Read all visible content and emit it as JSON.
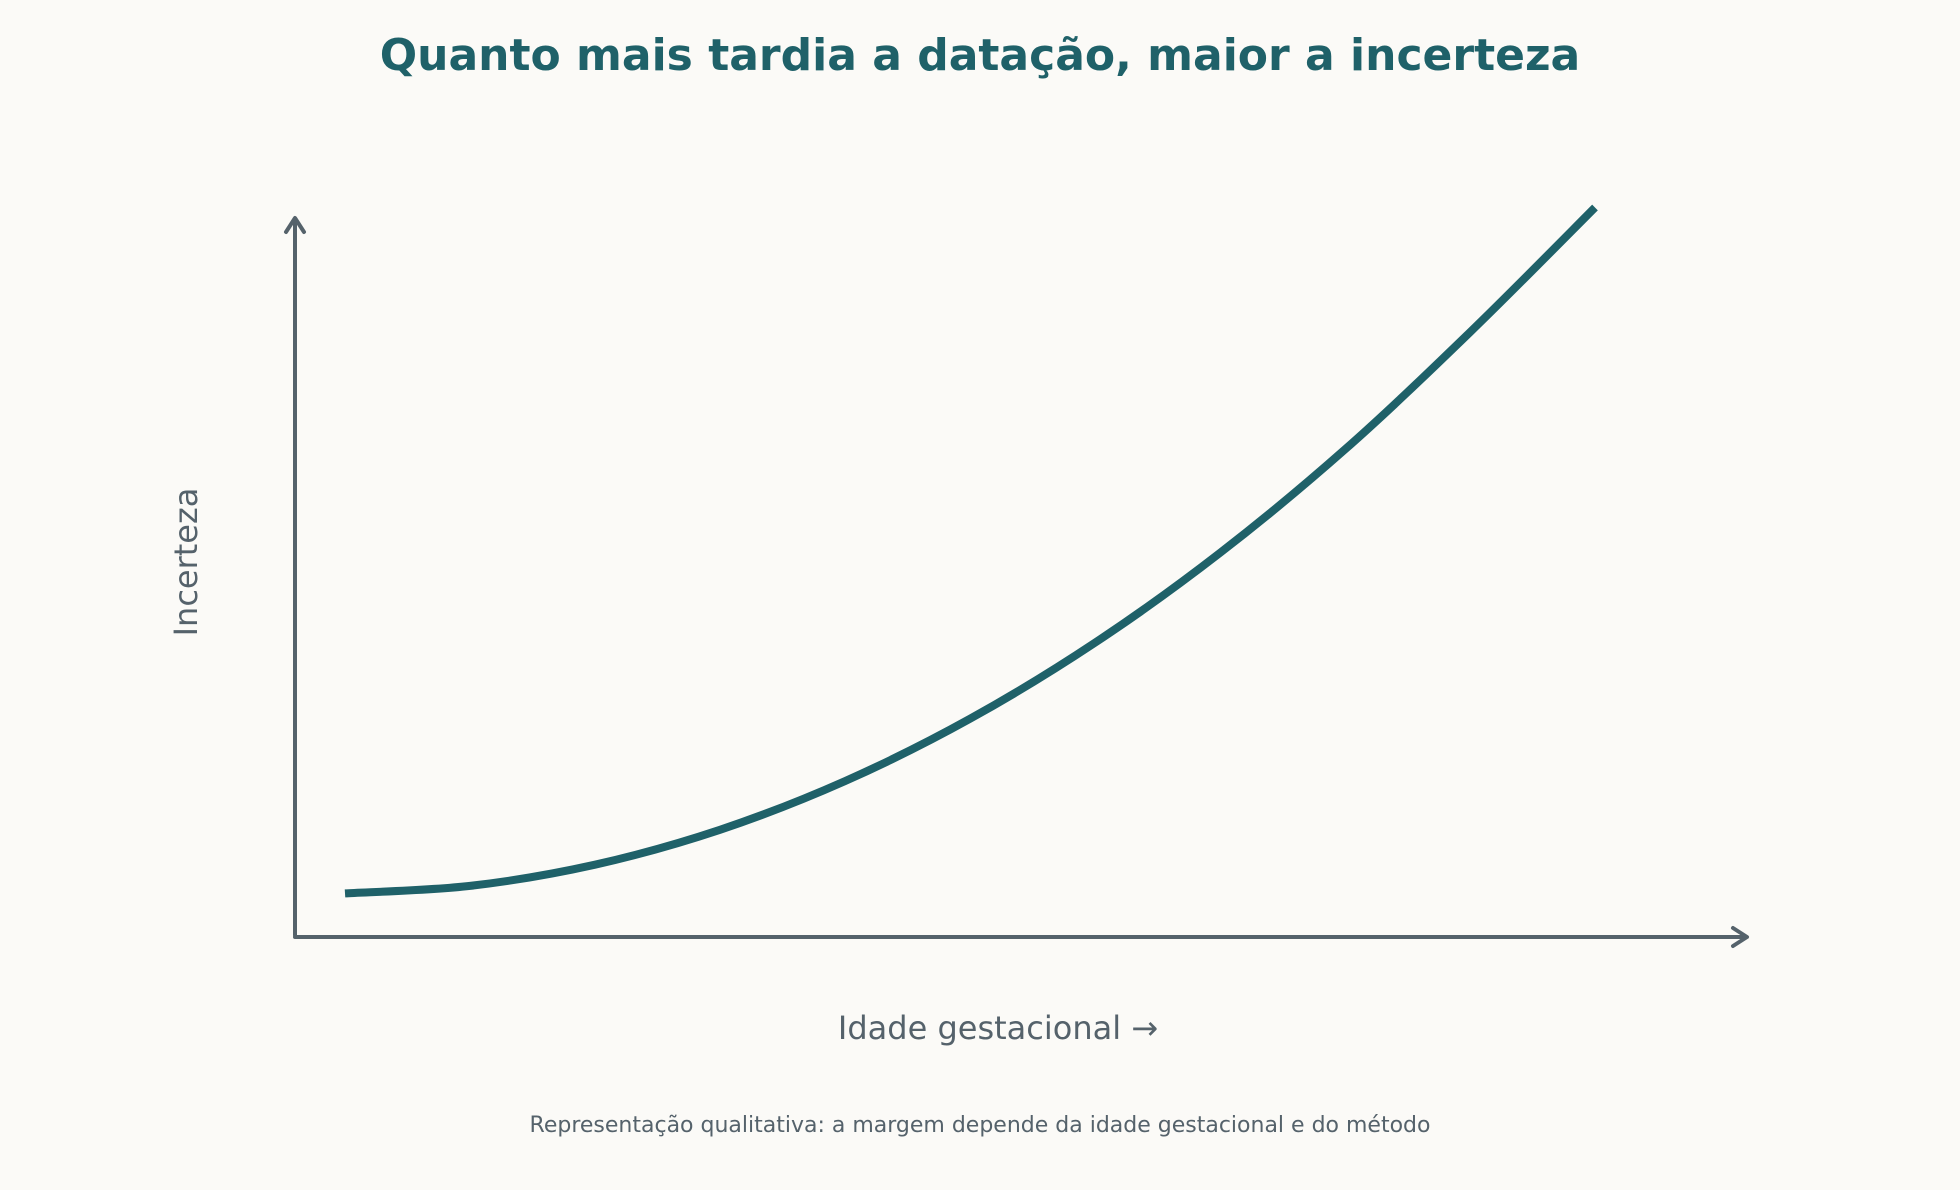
{
  "chart_data": {
    "type": "line",
    "title": "Quanto mais tardia a datação, maior a incerteza",
    "xlabel": "Idade gestacional →",
    "ylabel": "Incerteza",
    "footnote": "Representação qualitativa: a margem depende da idade gestacional e do método",
    "qualitative": true,
    "grid": false,
    "xlim": [
      0,
      1.16
    ],
    "ylim": [
      0,
      1.15
    ],
    "series": [
      {
        "color": "#1f6169",
        "x": [
          0.04,
          0.14,
          0.24,
          0.34,
          0.44,
          0.54,
          0.64,
          0.74,
          0.84,
          0.94,
          1.04
        ],
        "y": [
          0.07,
          0.082,
          0.116,
          0.172,
          0.25,
          0.35,
          0.472,
          0.616,
          0.782,
          0.97,
          1.17
        ]
      }
    ],
    "colors": {
      "background": "#fbfaf7",
      "title": "#1f6169",
      "axis": "#55626b",
      "curve": "#1f6169"
    }
  }
}
